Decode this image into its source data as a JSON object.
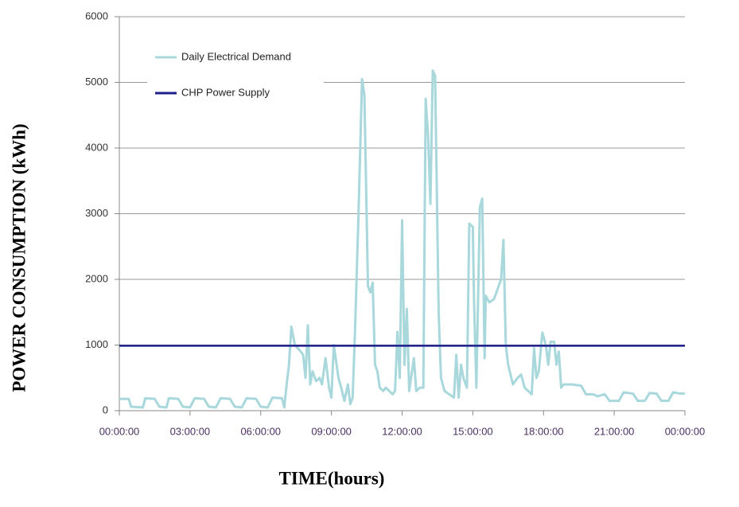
{
  "chart_data": {
    "type": "line",
    "x_label": "TIME(hours)",
    "y_label": "POWER  CONSUMPTION (kWh)",
    "xlim": [
      0,
      24
    ],
    "xticks": [
      {
        "value": 0,
        "label": "00:00:00"
      },
      {
        "value": 3,
        "label": "03:00:00"
      },
      {
        "value": 6,
        "label": "06:00:00"
      },
      {
        "value": 9,
        "label": "09:00:00"
      },
      {
        "value": 12,
        "label": "12:00:00"
      },
      {
        "value": 15,
        "label": "15:00:00"
      },
      {
        "value": 18,
        "label": "18:00:00"
      },
      {
        "value": 21,
        "label": "21:00:00"
      },
      {
        "value": 24,
        "label": "00:00:00"
      }
    ],
    "ylim": [
      0,
      6000
    ],
    "yticks": [
      0,
      1000,
      2000,
      3000,
      4000,
      5000,
      6000
    ],
    "grid": true,
    "legend": "top-left",
    "series": [
      {
        "name": "Daily Electrical Demand",
        "color": "#a8d8dc",
        "x": [
          0,
          0.4,
          0.5,
          1.0,
          1.1,
          1.5,
          1.7,
          2.0,
          2.1,
          2.5,
          2.7,
          3.0,
          3.2,
          3.6,
          3.8,
          4.1,
          4.3,
          4.7,
          4.9,
          5.2,
          5.4,
          5.8,
          6.0,
          6.3,
          6.5,
          6.9,
          7.0,
          7.1,
          7.2,
          7.3,
          7.45,
          7.7,
          7.8,
          7.9,
          8.0,
          8.1,
          8.2,
          8.35,
          8.5,
          8.6,
          8.75,
          8.9,
          9.0,
          9.1,
          9.3,
          9.45,
          9.55,
          9.7,
          9.8,
          9.9,
          10.0,
          10.15,
          10.3,
          10.4,
          10.55,
          10.65,
          10.75,
          10.85,
          10.95,
          11.05,
          11.2,
          11.3,
          11.45,
          11.6,
          11.7,
          11.8,
          11.9,
          12.0,
          12.1,
          12.2,
          12.3,
          12.5,
          12.6,
          12.75,
          12.9,
          13.0,
          13.1,
          13.2,
          13.3,
          13.4,
          13.55,
          13.65,
          13.8,
          14.0,
          14.2,
          14.3,
          14.4,
          14.5,
          14.6,
          14.75,
          14.85,
          15.0,
          15.05,
          15.15,
          15.3,
          15.4,
          15.5,
          15.55,
          15.7,
          15.9,
          16.1,
          16.2,
          16.3,
          16.4,
          16.5,
          16.7,
          16.9,
          17.05,
          17.2,
          17.35,
          17.5,
          17.6,
          17.7,
          17.8,
          17.95,
          18.1,
          18.2,
          18.3,
          18.45,
          18.55,
          18.65,
          18.75,
          18.85,
          19.2,
          19.6,
          19.8,
          20.1,
          20.3,
          20.6,
          20.8,
          21.2,
          21.4,
          21.8,
          22.0,
          22.3,
          22.5,
          22.8,
          23.0,
          23.3,
          23.5,
          23.8,
          24
        ],
        "values": [
          180,
          180,
          60,
          50,
          190,
          180,
          60,
          50,
          190,
          180,
          60,
          50,
          190,
          180,
          60,
          50,
          190,
          180,
          60,
          50,
          190,
          180,
          60,
          50,
          200,
          190,
          50,
          400,
          700,
          1280,
          1000,
          900,
          850,
          500,
          1300,
          400,
          600,
          450,
          500,
          400,
          800,
          350,
          200,
          1000,
          500,
          300,
          150,
          400,
          100,
          200,
          1200,
          3000,
          5050,
          4800,
          1900,
          1800,
          1950,
          700,
          600,
          350,
          300,
          350,
          300,
          250,
          300,
          1200,
          500,
          2900,
          700,
          1550,
          300,
          800,
          300,
          350,
          350,
          4750,
          4200,
          3150,
          5180,
          5100,
          1500,
          500,
          300,
          250,
          200,
          850,
          200,
          700,
          500,
          350,
          2850,
          2800,
          1700,
          350,
          3100,
          3230,
          800,
          1750,
          1650,
          1700,
          1900,
          2000,
          2600,
          1000,
          700,
          400,
          500,
          550,
          350,
          300,
          250,
          950,
          500,
          600,
          1190,
          1000,
          700,
          1050,
          1050,
          700,
          900,
          350,
          400,
          400,
          380,
          250,
          250,
          220,
          250,
          150,
          150,
          280,
          260,
          150,
          150,
          270,
          260,
          150,
          150,
          280,
          260,
          260
        ]
      },
      {
        "name": "CHP Power Supply",
        "color": "#1f1f8c",
        "x": [
          0,
          24
        ],
        "values": [
          990,
          990
        ]
      }
    ]
  }
}
